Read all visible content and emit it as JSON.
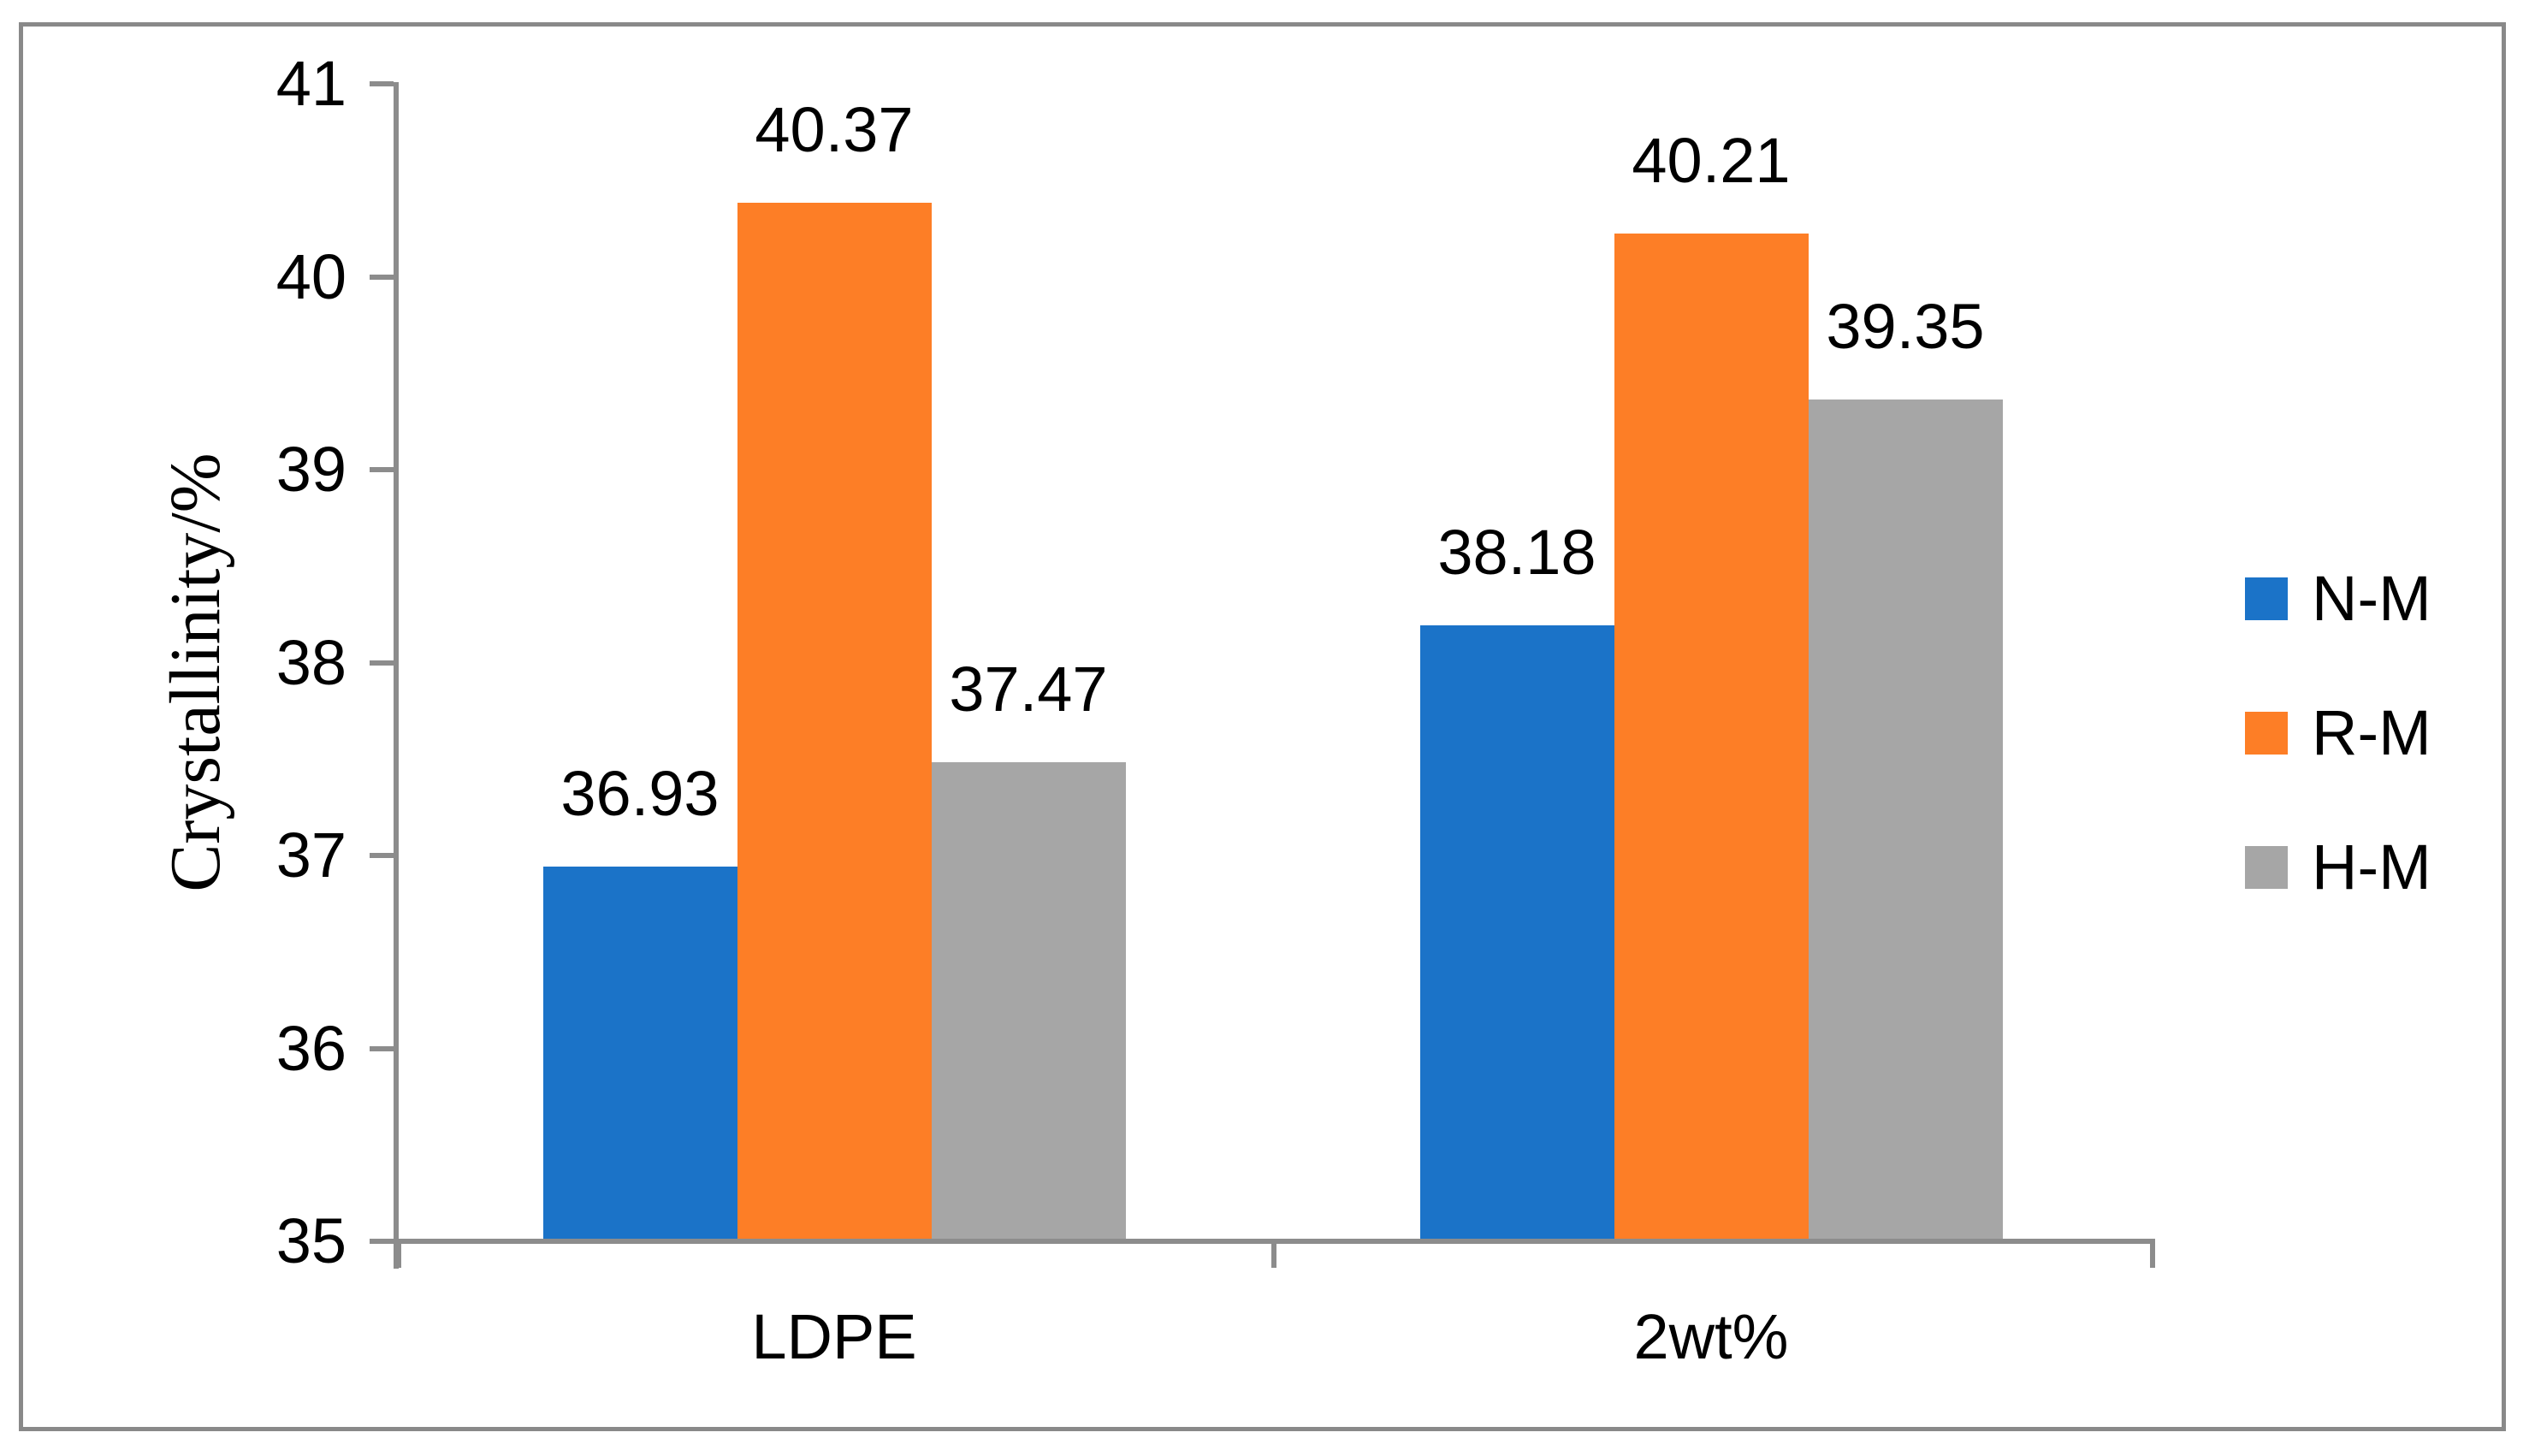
{
  "chart_data": {
    "type": "bar",
    "title": "",
    "xlabel": "",
    "ylabel": "Crystallinity/%",
    "categories": [
      "LDPE",
      "2wt%"
    ],
    "series": [
      {
        "name": "N-M",
        "color": "#1B73C8",
        "values": [
          36.93,
          38.18
        ],
        "labels": [
          "36.93",
          "38.18"
        ]
      },
      {
        "name": "R-M",
        "color": "#FD7E26",
        "values": [
          40.37,
          40.21
        ],
        "labels": [
          "40.37",
          "40.21"
        ]
      },
      {
        "name": "H-M",
        "color": "#A6A6A6",
        "values": [
          37.47,
          39.35
        ],
        "labels": [
          "37.47",
          "39.35"
        ]
      }
    ],
    "ylim": [
      35,
      41
    ],
    "ytick_labels": [
      "41",
      "40",
      "39",
      "38",
      "37",
      "36",
      "35"
    ],
    "yticks": [
      41,
      40,
      39,
      38,
      37,
      36,
      35
    ],
    "grid": false,
    "data_labels": true,
    "legend_position": "right",
    "colors": {
      "axis": "#8C8C8C",
      "border": "#898989",
      "text": "#000000",
      "background": "#FFFFFF"
    }
  }
}
